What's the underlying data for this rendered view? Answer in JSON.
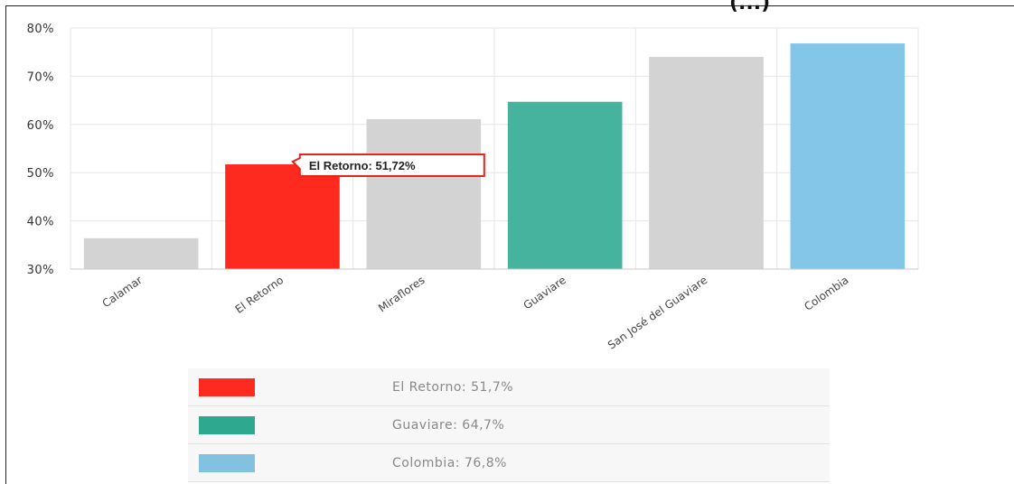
{
  "header_fragment": "(...)",
  "colors": {
    "default_bar": "#d3d3d3",
    "highlight_red": "#ff2a1f",
    "highlight_teal": "#46b39e",
    "highlight_blue": "#83c6e8",
    "tooltip_border": "#e8231a"
  },
  "chart_data": {
    "type": "bar",
    "categories": [
      "Calamar",
      "El Retorno",
      "Miraflores",
      "Guaviare",
      "San José del Guaviare",
      "Colombia"
    ],
    "values": [
      36.4,
      51.72,
      61.1,
      64.7,
      74.0,
      76.8
    ],
    "bar_colors": [
      "#d3d3d3",
      "#ff2a1f",
      "#d3d3d3",
      "#46b39e",
      "#d3d3d3",
      "#83c6e8"
    ],
    "ylim": [
      30,
      80
    ],
    "y_ticks": [
      "30%",
      "40%",
      "50%",
      "60%",
      "70%",
      "80%"
    ],
    "grid": true,
    "title": "",
    "xlabel": "",
    "ylabel": "",
    "tooltip": {
      "category": "El Retorno",
      "label": "El Retorno: 51,72%"
    }
  },
  "legend": [
    {
      "label": "El Retorno:  51,7%",
      "color": "#ff2a1f"
    },
    {
      "label": "Guaviare:  64,7%",
      "color": "#2ea88f"
    },
    {
      "label": "Colombia:  76,8%",
      "color": "#83c1e0"
    }
  ]
}
